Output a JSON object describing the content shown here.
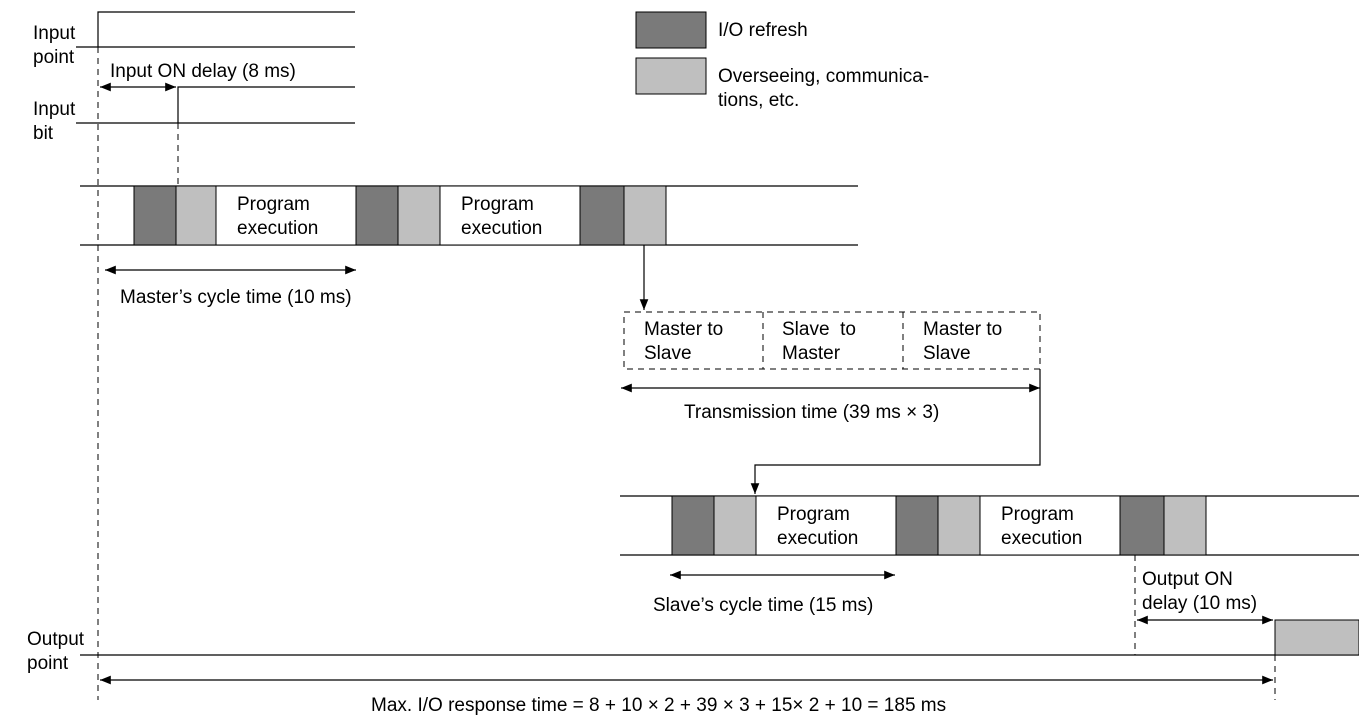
{
  "legend": {
    "io_refresh": "I/O refresh",
    "overseeing_line1": "Overseeing, communica-",
    "overseeing_line2": "tions, etc.",
    "colors": {
      "io_refresh": "#7a7a7a",
      "overseeing": "#bfbfbf"
    }
  },
  "labels": {
    "input_point_1": "Input",
    "input_point_2": "point",
    "input_bit_1": "Input",
    "input_bit_2": "bit",
    "output_point_1": "Output",
    "output_point_2": "point"
  },
  "master": {
    "input_on_delay": "Input ON delay (8 ms)",
    "program_1_line1": "Program",
    "program_1_line2": "execution",
    "program_2_line1": "Program",
    "program_2_line2": "execution",
    "cycle_time": "Master’s cycle time (10 ms)"
  },
  "transmission": {
    "box1_line1": "Master to",
    "box1_line2": "Slave",
    "box2_line1": "Slave  to",
    "box2_line2": "Master",
    "box3_line1": "Master to",
    "box3_line2": "Slave",
    "time": "Transmission time (39 ms × 3)"
  },
  "slave": {
    "program_1_line1": "Program",
    "program_1_line2": "execution",
    "program_2_line1": "Program",
    "program_2_line2": "execution",
    "cycle_time": "Slave’s cycle time (15 ms)",
    "output_on_delay_1": "Output ON",
    "output_on_delay_2": "delay (10 ms)"
  },
  "total": "Max. I/O response time = 8 + 10 × 2 + 39 × 3 + 15× 2 + 10 = 185 ms"
}
